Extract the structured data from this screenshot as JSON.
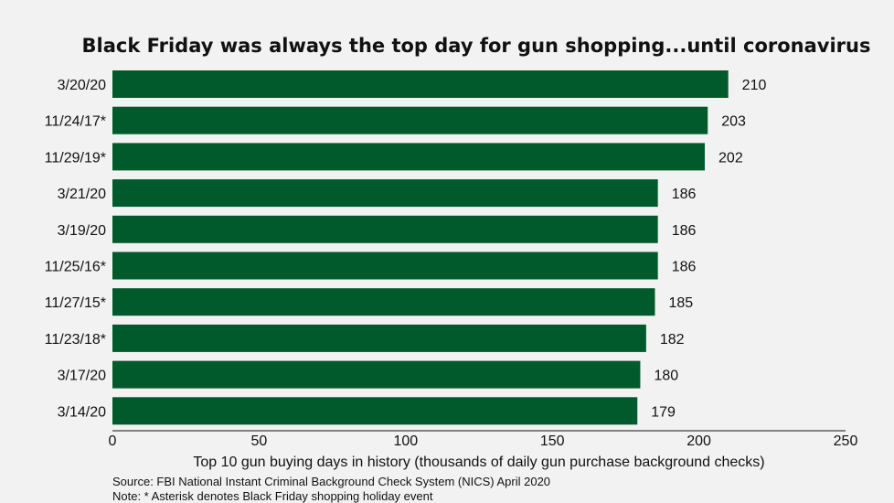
{
  "chart_data": {
    "type": "bar",
    "orientation": "horizontal",
    "title": "Black Friday was always the top day for gun shopping...until coronavirus",
    "xlabel": "Top 10 gun buying days in history (thousands of daily gun purchase background checks)",
    "categories": [
      "3/20/20",
      "11/24/17*",
      "11/29/19*",
      "3/21/20",
      "3/19/20",
      "11/25/16*",
      "11/27/15*",
      "11/23/18*",
      "3/17/20",
      "3/14/20"
    ],
    "values": [
      210,
      203,
      202,
      186,
      186,
      186,
      185,
      182,
      180,
      179
    ],
    "xlim": [
      0,
      250
    ],
    "xticks": [
      0,
      50,
      100,
      150,
      200,
      250
    ],
    "bar_color": "#005a2b",
    "grid": false,
    "legend": "none"
  },
  "notes": {
    "source": "Source: FBI National Instant Criminal Background Check System (NICS) April 2020",
    "note": "Note: * Asterisk denotes Black Friday shopping holiday event"
  }
}
